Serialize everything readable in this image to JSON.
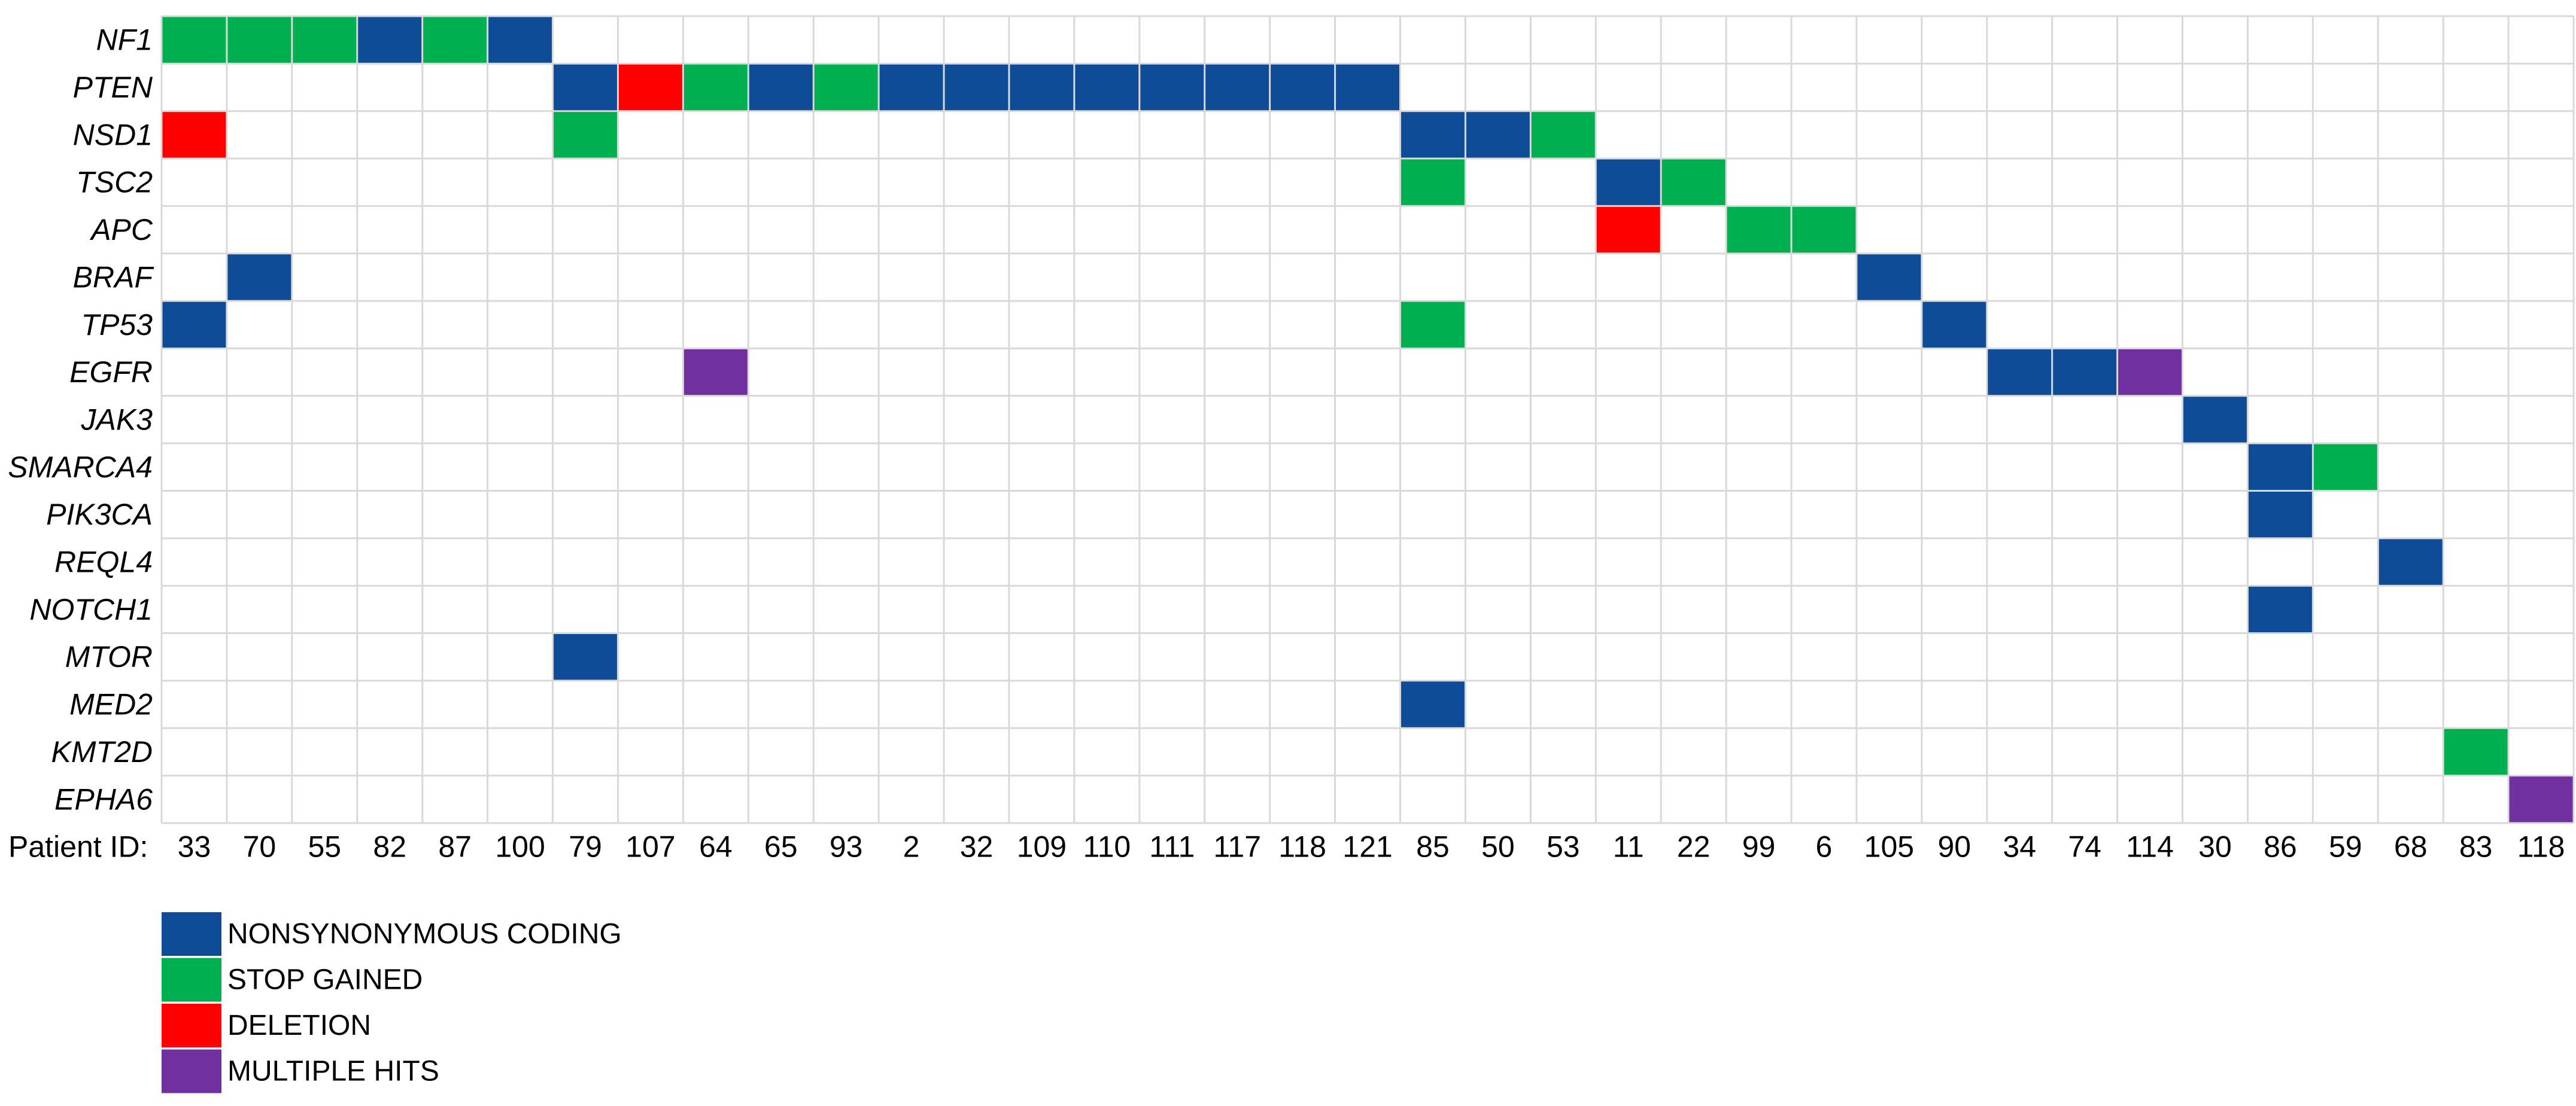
{
  "chart_data": {
    "type": "heatmap",
    "title": "",
    "xlabel": "Patient ID:",
    "ylabel": "",
    "genes": [
      "NF1",
      "PTEN",
      "NSD1",
      "TSC2",
      "APC",
      "BRAF",
      "TP53",
      "EGFR",
      "JAK3",
      "SMARCA4",
      "PIK3CA",
      "REQL4",
      "NOTCH1",
      "MTOR",
      "MED2",
      "KMT2D",
      "EPHA6"
    ],
    "patients": [
      "33",
      "70",
      "55",
      "82",
      "87",
      "100",
      "79",
      "107",
      "64",
      "65",
      "93",
      "2",
      "32",
      "109",
      "110",
      "111",
      "117",
      "118",
      "121",
      "85",
      "50",
      "53",
      "11",
      "22",
      "99",
      "6",
      "105",
      "90",
      "34",
      "74",
      "114",
      "30",
      "86",
      "59",
      "68",
      "83",
      "118"
    ],
    "categories": [
      {
        "key": "nonsynonymous",
        "label": "NONSYNONYMOUS CODING",
        "color": "#0f4c97"
      },
      {
        "key": "stop",
        "label": "STOP GAINED",
        "color": "#00b050"
      },
      {
        "key": "deletion",
        "label": "DELETION",
        "color": "#ff0000"
      },
      {
        "key": "multiple",
        "label": "MULTIPLE HITS",
        "color": "#7030a0"
      }
    ],
    "grid": true,
    "grid_color": "#d9d9d9",
    "legend_position": "bottom-left",
    "matrix": [
      [
        "stop",
        "stop",
        "stop",
        "nonsynonymous",
        "stop",
        "nonsynonymous",
        "",
        "",
        "",
        "",
        "",
        "",
        "",
        "",
        "",
        "",
        "",
        "",
        "",
        "",
        "",
        "",
        "",
        "",
        "",
        "",
        "",
        "",
        "",
        "",
        "",
        "",
        "",
        "",
        "",
        "",
        ""
      ],
      [
        "",
        "",
        "",
        "",
        "",
        "",
        "nonsynonymous",
        "deletion",
        "stop",
        "nonsynonymous",
        "stop",
        "nonsynonymous",
        "nonsynonymous",
        "nonsynonymous",
        "nonsynonymous",
        "nonsynonymous",
        "nonsynonymous",
        "nonsynonymous",
        "nonsynonymous",
        "",
        "",
        "",
        "",
        "",
        "",
        "",
        "",
        "",
        "",
        "",
        "",
        "",
        "",
        "",
        "",
        "",
        ""
      ],
      [
        "deletion",
        "",
        "",
        "",
        "",
        "",
        "stop",
        "",
        "",
        "",
        "",
        "",
        "",
        "",
        "",
        "",
        "",
        "",
        "",
        "nonsynonymous",
        "nonsynonymous",
        "stop",
        "",
        "",
        "",
        "",
        "",
        "",
        "",
        "",
        "",
        "",
        "",
        "",
        "",
        "",
        ""
      ],
      [
        "",
        "",
        "",
        "",
        "",
        "",
        "",
        "",
        "",
        "",
        "",
        "",
        "",
        "",
        "",
        "",
        "",
        "",
        "",
        "stop",
        "",
        "",
        "nonsynonymous",
        "stop",
        "",
        "",
        "",
        "",
        "",
        "",
        "",
        "",
        "",
        "",
        "",
        "",
        ""
      ],
      [
        "",
        "",
        "",
        "",
        "",
        "",
        "",
        "",
        "",
        "",
        "",
        "",
        "",
        "",
        "",
        "",
        "",
        "",
        "",
        "",
        "",
        "",
        "deletion",
        "",
        "stop",
        "stop",
        "",
        "",
        "",
        "",
        "",
        "",
        "",
        "",
        "",
        "",
        ""
      ],
      [
        "",
        "nonsynonymous",
        "",
        "",
        "",
        "",
        "",
        "",
        "",
        "",
        "",
        "",
        "",
        "",
        "",
        "",
        "",
        "",
        "",
        "",
        "",
        "",
        "",
        "",
        "",
        "",
        "nonsynonymous",
        "",
        "",
        "",
        "",
        "",
        "",
        "",
        "",
        "",
        ""
      ],
      [
        "nonsynonymous",
        "",
        "",
        "",
        "",
        "",
        "",
        "",
        "",
        "",
        "",
        "",
        "",
        "",
        "",
        "",
        "",
        "",
        "",
        "stop",
        "",
        "",
        "",
        "",
        "",
        "",
        "",
        "nonsynonymous",
        "",
        "",
        "",
        "",
        "",
        "",
        "",
        "",
        ""
      ],
      [
        "",
        "",
        "",
        "",
        "",
        "",
        "",
        "",
        "multiple",
        "",
        "",
        "",
        "",
        "",
        "",
        "",
        "",
        "",
        "",
        "",
        "",
        "",
        "",
        "",
        "",
        "",
        "",
        "",
        "nonsynonymous",
        "nonsynonymous",
        "multiple",
        "",
        "",
        "",
        "",
        "",
        ""
      ],
      [
        "",
        "",
        "",
        "",
        "",
        "",
        "",
        "",
        "",
        "",
        "",
        "",
        "",
        "",
        "",
        "",
        "",
        "",
        "",
        "",
        "",
        "",
        "",
        "",
        "",
        "",
        "",
        "",
        "",
        "",
        "",
        "nonsynonymous",
        "",
        "",
        "",
        "",
        ""
      ],
      [
        "",
        "",
        "",
        "",
        "",
        "",
        "",
        "",
        "",
        "",
        "",
        "",
        "",
        "",
        "",
        "",
        "",
        "",
        "",
        "",
        "",
        "",
        "",
        "",
        "",
        "",
        "",
        "",
        "",
        "",
        "",
        "",
        "nonsynonymous",
        "stop",
        "",
        "",
        ""
      ],
      [
        "",
        "",
        "",
        "",
        "",
        "",
        "",
        "",
        "",
        "",
        "",
        "",
        "",
        "",
        "",
        "",
        "",
        "",
        "",
        "",
        "",
        "",
        "",
        "",
        "",
        "",
        "",
        "",
        "",
        "",
        "",
        "",
        "nonsynonymous",
        "",
        "",
        "",
        ""
      ],
      [
        "",
        "",
        "",
        "",
        "",
        "",
        "",
        "",
        "",
        "",
        "",
        "",
        "",
        "",
        "",
        "",
        "",
        "",
        "",
        "",
        "",
        "",
        "",
        "",
        "",
        "",
        "",
        "",
        "",
        "",
        "",
        "",
        "",
        "",
        "nonsynonymous",
        "",
        ""
      ],
      [
        "",
        "",
        "",
        "",
        "",
        "",
        "",
        "",
        "",
        "",
        "",
        "",
        "",
        "",
        "",
        "",
        "",
        "",
        "",
        "",
        "",
        "",
        "",
        "",
        "",
        "",
        "",
        "",
        "",
        "",
        "",
        "",
        "nonsynonymous",
        "",
        "",
        "",
        ""
      ],
      [
        "",
        "",
        "",
        "",
        "",
        "",
        "nonsynonymous",
        "",
        "",
        "",
        "",
        "",
        "",
        "",
        "",
        "",
        "",
        "",
        "",
        "",
        "",
        "",
        "",
        "",
        "",
        "",
        "",
        "",
        "",
        "",
        "",
        "",
        "",
        "",
        "",
        "",
        ""
      ],
      [
        "",
        "",
        "",
        "",
        "",
        "",
        "",
        "",
        "",
        "",
        "",
        "",
        "",
        "",
        "",
        "",
        "",
        "",
        "",
        "nonsynonymous",
        "",
        "",
        "",
        "",
        "",
        "",
        "",
        "",
        "",
        "",
        "",
        "",
        "",
        "",
        "",
        "",
        ""
      ],
      [
        "",
        "",
        "",
        "",
        "",
        "",
        "",
        "",
        "",
        "",
        "",
        "",
        "",
        "",
        "",
        "",
        "",
        "",
        "",
        "",
        "",
        "",
        "",
        "",
        "",
        "",
        "",
        "",
        "",
        "",
        "",
        "",
        "",
        "",
        "",
        "stop",
        ""
      ],
      [
        "",
        "",
        "",
        "",
        "",
        "",
        "",
        "",
        "",
        "",
        "",
        "",
        "",
        "",
        "",
        "",
        "",
        "",
        "",
        "",
        "",
        "",
        "",
        "",
        "",
        "",
        "",
        "",
        "",
        "",
        "",
        "",
        "",
        "",
        "",
        "",
        "multiple"
      ]
    ]
  }
}
